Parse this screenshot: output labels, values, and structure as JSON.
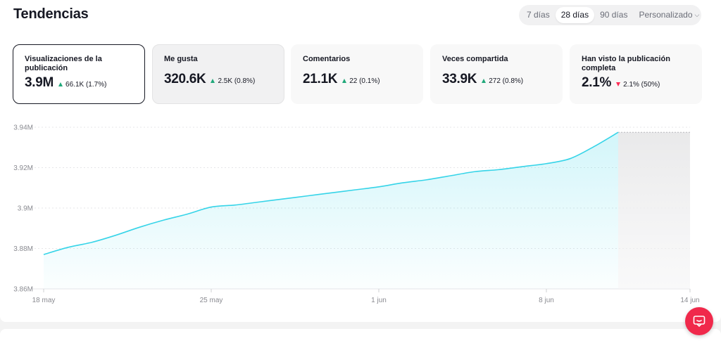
{
  "header": {
    "title": "Tendencias"
  },
  "range": {
    "options": [
      {
        "label": "7 días",
        "active": false
      },
      {
        "label": "28 días",
        "active": true
      },
      {
        "label": "90 días",
        "active": false
      },
      {
        "label": "Personalizado",
        "active": false
      }
    ]
  },
  "metrics": [
    {
      "label": "Visualizaciones de la publicación",
      "value": "3.9M",
      "delta": "66.1K (1.7%)",
      "trend": "up",
      "state": "selected"
    },
    {
      "label": "Me gusta",
      "value": "320.6K",
      "delta": "2.5K (0.8%)",
      "trend": "up",
      "state": "hover"
    },
    {
      "label": "Comentarios",
      "value": "21.1K",
      "delta": "22 (0.1%)",
      "trend": "up",
      "state": "normal"
    },
    {
      "label": "Veces compartida",
      "value": "33.9K",
      "delta": "272 (0.8%)",
      "trend": "up",
      "state": "normal"
    },
    {
      "label": "Han visto la publicación completa",
      "value": "2.1%",
      "delta": "2.1% (50%)",
      "trend": "down",
      "state": "normal"
    }
  ],
  "colors": {
    "accent": "#36d4e8",
    "up": "#20a87a",
    "down": "#fe2c55",
    "fab": "#f0294b"
  },
  "chart_data": {
    "type": "area",
    "title": "",
    "xlabel": "",
    "ylabel": "",
    "y_tick_labels": [
      "3.94M",
      "3.92M",
      "3.9M",
      "3.88M",
      "3.86M"
    ],
    "y_ticks": [
      3.94,
      3.92,
      3.9,
      3.88,
      3.86
    ],
    "ylim": [
      3.86,
      3.94
    ],
    "x_tick_labels": [
      "18 may",
      "25 may",
      "1 jun",
      "8 jun",
      "14 jun"
    ],
    "x_ticks": [
      0,
      7,
      14,
      21,
      27
    ],
    "xlim": [
      0,
      27
    ],
    "grid": true,
    "series": [
      {
        "x": [
          0,
          1,
          2,
          3,
          4,
          5,
          6,
          7,
          8,
          9,
          10,
          11,
          12,
          13,
          14,
          15,
          16,
          17,
          18,
          19,
          20,
          21,
          22,
          23,
          24
        ],
        "values": [
          3.877,
          3.8805,
          3.883,
          3.8865,
          3.8905,
          3.894,
          3.897,
          3.9005,
          3.9015,
          3.903,
          3.9045,
          3.906,
          3.9075,
          3.909,
          3.9105,
          3.9125,
          3.914,
          3.916,
          3.918,
          3.919,
          3.9205,
          3.922,
          3.9245,
          3.9305,
          3.9375
        ]
      }
    ],
    "pending_from_x": 24
  }
}
